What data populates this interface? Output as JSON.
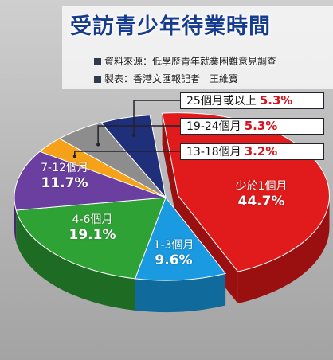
{
  "title": "受訪青少年待業時間",
  "source_line": "資料來源：低學歷青年就業困難意見調查",
  "credit_line": "製表：香港文匯報記者　王維寶",
  "chart_data": {
    "type": "pie",
    "title": "受訪青少年待業時間",
    "unit": "%",
    "categories": [
      "少於1個月",
      "1-3個月",
      "4-6個月",
      "7-12個月",
      "13-18個月",
      "19-24個月",
      "25個月或以上"
    ],
    "values": [
      44.7,
      9.6,
      19.1,
      11.7,
      3.2,
      5.3,
      5.3
    ],
    "value_labels": [
      "44.7%",
      "9.6%",
      "19.1%",
      "11.7%",
      "3.2%",
      "5.3%",
      "5.3%"
    ],
    "colors": [
      "#e11b1b",
      "#1a9ae0",
      "#2fa236",
      "#6b3fa0",
      "#f5a21a",
      "#8d8d8d",
      "#1f2f7a"
    ],
    "side_colors": [
      "#9a0f0f",
      "#106b9c",
      "#1e6b24",
      "#43276a",
      "#b87510",
      "#5e5e5e",
      "#131d4f"
    ],
    "exploded": [
      true,
      false,
      false,
      false,
      false,
      false,
      false
    ],
    "callouts": {
      "label_25": "25個月或以上",
      "value_25": "5.3%",
      "label_19": "19-24個月",
      "value_19": "5.3%",
      "label_13": "13-18個月",
      "value_13": "3.2%"
    }
  }
}
